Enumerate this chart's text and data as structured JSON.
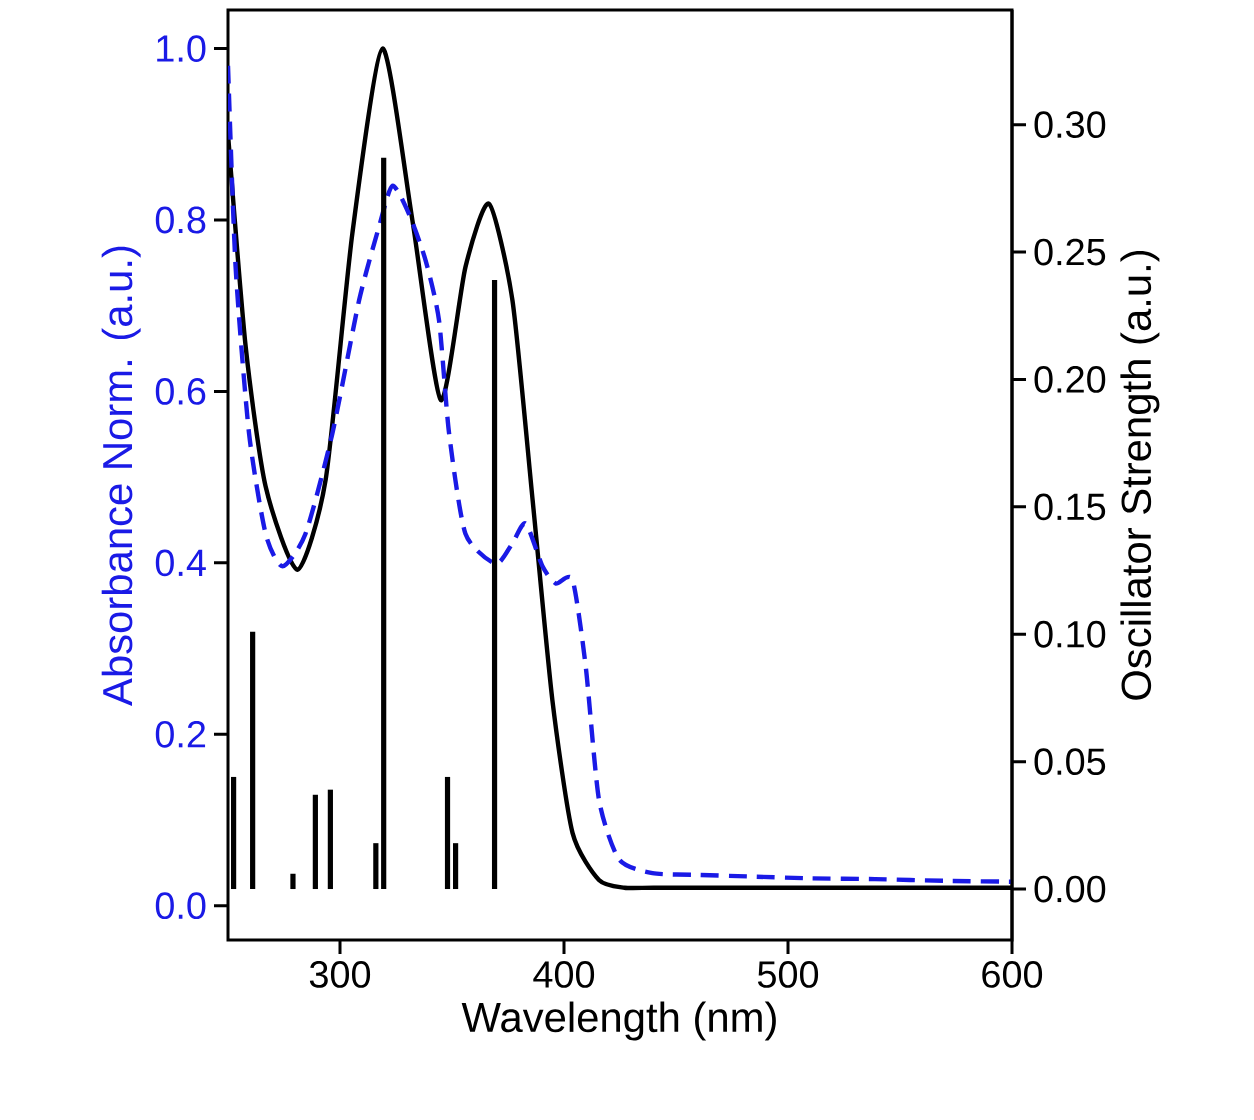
{
  "chart_data": {
    "type": "line",
    "xlabel": "Wavelength (nm)",
    "ylabel": "Absorbance Norm. (a.u.)",
    "y2label": "Oscillator Strength (a.u.)",
    "xlim": [
      250,
      600
    ],
    "xticks": [
      300,
      400,
      500,
      600
    ],
    "ylim": [
      -0.04,
      1.045
    ],
    "yticks": [
      {
        "value": 0,
        "label": "0.0"
      },
      0.2,
      0.4,
      0.6,
      0.8,
      {
        "value": 1,
        "label": "1.0"
      }
    ],
    "y2lim": [
      -0.02,
      0.345
    ],
    "y2ticks": [
      {
        "value": 0,
        "label": "0.00"
      },
      0.05,
      {
        "value": 0.1,
        "label": "0.10"
      },
      0.15,
      {
        "value": 0.2,
        "label": "0.20"
      },
      0.25,
      {
        "value": 0.3,
        "label": "0.30"
      }
    ],
    "marker": "none",
    "grid": false,
    "series": [
      {
        "color": "#000000",
        "line_style": "solid",
        "x": [
          250,
          257.9,
          266.8,
          281,
          293.6,
          305.5,
          319,
          332.3,
          345,
          356,
          366.5,
          377,
          386,
          394.8,
          403.8,
          415.6,
          427,
          440,
          470,
          520,
          560,
          600
        ],
        "values": [
          0.9,
          0.652,
          0.489,
          0.392,
          0.497,
          0.784,
          1.0,
          0.8,
          0.59,
          0.745,
          0.819,
          0.706,
          0.473,
          0.24,
          0.085,
          0.03,
          0.021,
          0.021,
          0.021,
          0.021,
          0.021,
          0.021
        ]
      },
      {
        "color": "#1a1ae6",
        "line_style": "dashed",
        "x": [
          250,
          253.4,
          259.4,
          266.8,
          274.3,
          284.6,
          296.6,
          308.5,
          317.4,
          323.4,
          330.8,
          338.2,
          344.2,
          348.7,
          356,
          369.5,
          377,
          382.9,
          390.4,
          396.3,
          403.8,
          409.7,
          415.6,
          424.6,
          439.5,
          460,
          484,
          510,
          538.8,
          570,
          600
        ],
        "values": [
          0.98,
          0.745,
          0.551,
          0.434,
          0.396,
          0.434,
          0.551,
          0.706,
          0.792,
          0.84,
          0.807,
          0.753,
          0.683,
          0.551,
          0.434,
          0.399,
          0.423,
          0.446,
          0.396,
          0.376,
          0.38,
          0.279,
          0.124,
          0.054,
          0.038,
          0.036,
          0.034,
          0.032,
          0.031,
          0.029,
          0.028
        ]
      },
      {
        "type": "bar",
        "axis": "y2",
        "color": "#000000",
        "x": [
          252.5,
          261,
          279,
          289,
          295.7,
          316,
          319.5,
          348,
          351.6,
          369
        ],
        "values": [
          0.044,
          0.101,
          0.006,
          0.037,
          0.039,
          0.018,
          0.287,
          0.044,
          0.018,
          0.239
        ]
      }
    ]
  }
}
